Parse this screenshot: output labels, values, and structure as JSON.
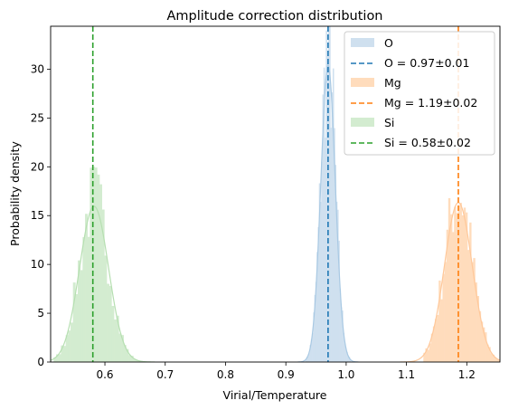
{
  "chart_data": {
    "type": "histogram",
    "title": "Amplitude correction distribution",
    "xlabel": "Virial/Temperature",
    "ylabel": "Probability density",
    "xlim": [
      0.51,
      1.255
    ],
    "ylim": [
      0,
      34.4
    ],
    "xticks": [
      "0.6",
      "0.7",
      "0.8",
      "0.9",
      "1.0",
      "1.1",
      "1.2"
    ],
    "yticks": [
      "0",
      "5",
      "10",
      "15",
      "20",
      "25",
      "30"
    ],
    "grid": false,
    "legend_position": "top-right",
    "series": [
      {
        "name": "O",
        "color": "#1f77b4",
        "fill_color": "#cfe0ef",
        "line_color": "#a9c9e3",
        "mean": 0.97,
        "std": 0.012,
        "peak": 32.0,
        "range": [
          0.932,
          1.008
        ],
        "vline": 0.97,
        "vline_label": "O = 0.97±0.01"
      },
      {
        "name": "Mg",
        "color": "#ff7f0e",
        "fill_color": "#ffdcbc",
        "line_color": "#ffc89a",
        "mean": 1.186,
        "std": 0.023,
        "peak": 17.2,
        "range": [
          1.128,
          1.255
        ],
        "vline": 1.186,
        "vline_label": "Mg = 1.19±0.02"
      },
      {
        "name": "Si",
        "color": "#2ca02c",
        "fill_color": "#d3ecd0",
        "line_color": "#b6dfb1",
        "mean": 0.582,
        "std": 0.024,
        "peak": 16.8,
        "range": [
          0.515,
          0.675
        ],
        "vline": 0.58,
        "vline_label": "Si = 0.58±0.02"
      }
    ]
  }
}
